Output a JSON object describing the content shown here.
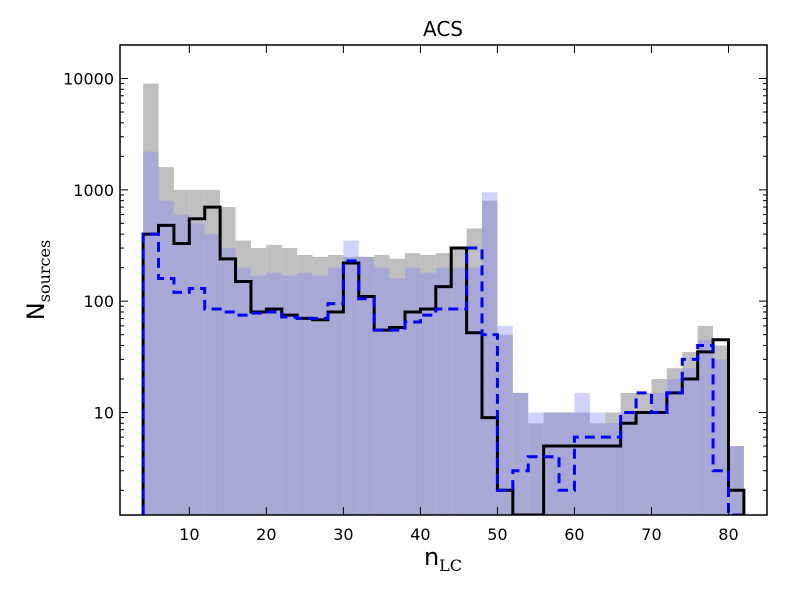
{
  "chart_data": {
    "type": "histogram",
    "title": "ACS",
    "xlabel": "n",
    "xlabel_sub": "LC",
    "ylabel": "N",
    "ylabel_sub": "sources",
    "xlim": [
      1,
      85
    ],
    "ylim": [
      1.2,
      20000
    ],
    "yscale": "log",
    "grid": false,
    "bin_width": 2,
    "bin_start": 4,
    "x_ticks": [
      10,
      20,
      30,
      40,
      50,
      60,
      70,
      80
    ],
    "y_ticks": [
      {
        "value": 10,
        "label": "10"
      },
      {
        "value": 100,
        "label": "100"
      },
      {
        "value": 1000,
        "label": "1000"
      },
      {
        "value": 10000,
        "label": "10000"
      }
    ],
    "series": [
      {
        "style": "filled",
        "color": "#bfbfbf",
        "values": [
          9000,
          1600,
          1000,
          1000,
          1000,
          700,
          350,
          300,
          320,
          300,
          260,
          250,
          260,
          250,
          250,
          260,
          240,
          270,
          260,
          270,
          300,
          450,
          800,
          50,
          15,
          8,
          10,
          10,
          10,
          8,
          10,
          15,
          15,
          20,
          25,
          35,
          60,
          40,
          5
        ]
      },
      {
        "style": "filled",
        "color": "rgba(125,125,255,0.35)",
        "values": [
          2200,
          800,
          600,
          500,
          400,
          300,
          200,
          170,
          180,
          170,
          180,
          170,
          200,
          350,
          250,
          200,
          160,
          200,
          180,
          200,
          200,
          200,
          950,
          60,
          15,
          10,
          10,
          10,
          15,
          10,
          8,
          10,
          10,
          15,
          20,
          25,
          45,
          30,
          5
        ]
      },
      {
        "style": "step",
        "color": "#000000",
        "values": [
          400,
          480,
          330,
          550,
          700,
          240,
          150,
          80,
          85,
          75,
          70,
          68,
          80,
          220,
          110,
          55,
          58,
          80,
          85,
          135,
          300,
          52,
          9,
          2,
          1,
          1,
          5,
          5,
          5,
          5,
          5,
          8,
          10,
          10,
          15,
          20,
          35,
          45,
          2
        ]
      },
      {
        "style": "dashed-step",
        "color": "#0000ff",
        "values": [
          400,
          160,
          120,
          130,
          85,
          80,
          75,
          78,
          80,
          72,
          70,
          70,
          95,
          230,
          105,
          55,
          55,
          65,
          75,
          85,
          85,
          300,
          50,
          2,
          3,
          4,
          4,
          2,
          6,
          6,
          6,
          10,
          15,
          10,
          15,
          30,
          40,
          3,
          1
        ]
      }
    ]
  }
}
